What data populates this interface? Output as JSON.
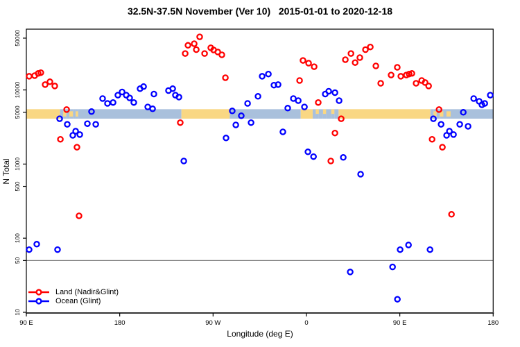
{
  "chart_data": {
    "type": "scatter",
    "title": "32.5N-37.5N November (Ver 10)   2015-01-01 to 2020-12-18",
    "xlabel": "Longitude (deg E)",
    "ylabel": "N Total",
    "x_axis": {
      "range_deg": [
        90,
        540
      ],
      "ticks": [
        {
          "lon": 90,
          "label": "90 E"
        },
        {
          "lon": 180,
          "label": "180"
        },
        {
          "lon": 270,
          "label": "90 W"
        },
        {
          "lon": 360,
          "label": "0"
        },
        {
          "lon": 450,
          "label": "90 E"
        },
        {
          "lon": 540,
          "label": "180"
        }
      ]
    },
    "y_axis": {
      "scale": "log",
      "range": [
        10,
        55000
      ],
      "ticks": [
        10,
        50,
        100,
        500,
        1000,
        5000,
        10000,
        50000
      ]
    },
    "ref_line": {
      "value": 50,
      "color": "#808080"
    },
    "map_band": {
      "value_top": 5500,
      "value_bottom": 4100,
      "land_color": "#F9D783",
      "ocean_color": "#A9C0DC",
      "segments": [
        {
          "from": 90,
          "to": 122.5,
          "type": "land",
          "h": "full"
        },
        {
          "from": 122.5,
          "to": 125.5,
          "type": "ocean",
          "h": "full"
        },
        {
          "from": 125.5,
          "to": 128.5,
          "type": "land",
          "h": "mid"
        },
        {
          "from": 128.5,
          "to": 131.5,
          "type": "ocean",
          "h": "full"
        },
        {
          "from": 131.5,
          "to": 135,
          "type": "land",
          "h": "mid"
        },
        {
          "from": 135,
          "to": 137.5,
          "type": "ocean",
          "h": "full"
        },
        {
          "from": 137.5,
          "to": 140,
          "type": "land",
          "h": "mid"
        },
        {
          "from": 140,
          "to": 239.5,
          "type": "ocean",
          "h": "full"
        },
        {
          "from": 239.5,
          "to": 286,
          "type": "land",
          "h": "full"
        },
        {
          "from": 286,
          "to": 354.5,
          "type": "ocean",
          "h": "full"
        },
        {
          "from": 354.5,
          "to": 366,
          "type": "land",
          "h": "full"
        },
        {
          "from": 366,
          "to": 369,
          "type": "ocean",
          "h": "full"
        },
        {
          "from": 369,
          "to": 372,
          "type": "land",
          "h": "top"
        },
        {
          "from": 372,
          "to": 376,
          "type": "ocean",
          "h": "full"
        },
        {
          "from": 376,
          "to": 379,
          "type": "land",
          "h": "top"
        },
        {
          "from": 379,
          "to": 384,
          "type": "ocean",
          "h": "full"
        },
        {
          "from": 384,
          "to": 387,
          "type": "land",
          "h": "top"
        },
        {
          "from": 387,
          "to": 391,
          "type": "ocean",
          "h": "full"
        },
        {
          "from": 391,
          "to": 479.5,
          "type": "land",
          "h": "full"
        },
        {
          "from": 479.5,
          "to": 482.5,
          "type": "ocean",
          "h": "full"
        },
        {
          "from": 482.5,
          "to": 485.5,
          "type": "land",
          "h": "mid"
        },
        {
          "from": 485.5,
          "to": 488.5,
          "type": "ocean",
          "h": "full"
        },
        {
          "from": 488.5,
          "to": 492,
          "type": "land",
          "h": "mid"
        },
        {
          "from": 492,
          "to": 495,
          "type": "ocean",
          "h": "full"
        },
        {
          "from": 495,
          "to": 499,
          "type": "land",
          "h": "mid"
        },
        {
          "from": 499,
          "to": 540,
          "type": "ocean",
          "h": "full"
        }
      ]
    },
    "series": [
      {
        "name": "Land (Nadir&Glint)",
        "color": "#FF0000",
        "points": [
          [
            92.7,
            15300
          ],
          [
            98,
            15600
          ],
          [
            101.4,
            16700
          ],
          [
            104,
            17100
          ],
          [
            108.1,
            11800
          ],
          [
            112.7,
            12900
          ],
          [
            117.4,
            11300
          ],
          [
            128.8,
            5430
          ],
          [
            122.8,
            2160
          ],
          [
            138.8,
            1690
          ],
          [
            140.8,
            200
          ],
          [
            238.4,
            3620
          ],
          [
            243.1,
            31000
          ],
          [
            245.8,
            40000
          ],
          [
            251.8,
            42000
          ],
          [
            253.8,
            35000
          ],
          [
            257.1,
            52000
          ],
          [
            261.8,
            31000
          ],
          [
            267.8,
            37000
          ],
          [
            270.5,
            34600
          ],
          [
            274.5,
            32500
          ],
          [
            278.5,
            29800
          ],
          [
            281.9,
            14600
          ],
          [
            353.4,
            13400
          ],
          [
            356.7,
            25000
          ],
          [
            362.1,
            23000
          ],
          [
            367.4,
            20600
          ],
          [
            371.4,
            6770
          ],
          [
            383.5,
            1100
          ],
          [
            387.5,
            2620
          ],
          [
            393.5,
            4090
          ],
          [
            397.5,
            25600
          ],
          [
            402.9,
            31000
          ],
          [
            406.9,
            23400
          ],
          [
            411.5,
            27300
          ],
          [
            416.9,
            35000
          ],
          [
            421.6,
            38000
          ],
          [
            426.9,
            21100
          ],
          [
            431.6,
            12300
          ],
          [
            441.6,
            15900
          ],
          [
            447.6,
            20200
          ],
          [
            451,
            15300
          ],
          [
            456.3,
            15900
          ],
          [
            459,
            16400
          ],
          [
            461.7,
            16700
          ],
          [
            465.7,
            12300
          ],
          [
            471.1,
            13400
          ],
          [
            474.4,
            12600
          ],
          [
            477.8,
            11300
          ],
          [
            487.8,
            5430
          ],
          [
            481.1,
            2160
          ],
          [
            491.1,
            1690
          ],
          [
            499.8,
            210
          ]
        ]
      },
      {
        "name": "Ocean (Glint)",
        "color": "#0000FF",
        "points": [
          [
            122.1,
            4090
          ],
          [
            129.4,
            3440
          ],
          [
            134.8,
            2440
          ],
          [
            137.5,
            2780
          ],
          [
            141.5,
            2500
          ],
          [
            148.8,
            3510
          ],
          [
            152.8,
            5100
          ],
          [
            156.9,
            3440
          ],
          [
            163.5,
            7650
          ],
          [
            168.2,
            6580
          ],
          [
            173.6,
            6770
          ],
          [
            178.2,
            8500
          ],
          [
            182.3,
            9400
          ],
          [
            186.3,
            8500
          ],
          [
            189.6,
            7800
          ],
          [
            193.6,
            6770
          ],
          [
            199.6,
            10400
          ],
          [
            203,
            11100
          ],
          [
            207,
            5900
          ],
          [
            211.7,
            5560
          ],
          [
            213,
            8800
          ],
          [
            227,
            9800
          ],
          [
            231.1,
            10400
          ],
          [
            233.7,
            8500
          ],
          [
            237.1,
            8000
          ],
          [
            241.8,
            1100
          ],
          [
            282.5,
            2250
          ],
          [
            288.5,
            5220
          ],
          [
            291.9,
            3370
          ],
          [
            297.2,
            4480
          ],
          [
            303.3,
            6580
          ],
          [
            306.6,
            3620
          ],
          [
            313.3,
            8200
          ],
          [
            317.3,
            15300
          ],
          [
            323.3,
            16400
          ],
          [
            328.7,
            11600
          ],
          [
            332.7,
            11800
          ],
          [
            337.3,
            2720
          ],
          [
            342,
            5680
          ],
          [
            347.4,
            7650
          ],
          [
            352.1,
            7170
          ],
          [
            358.1,
            5900
          ],
          [
            361.4,
            1460
          ],
          [
            366.8,
            1260
          ],
          [
            378.1,
            8800
          ],
          [
            381.5,
            9600
          ],
          [
            387.5,
            9200
          ],
          [
            391.5,
            7170
          ],
          [
            395.5,
            1230
          ],
          [
            402.2,
            35
          ],
          [
            412.2,
            730
          ],
          [
            443,
            41
          ],
          [
            447.7,
            15
          ],
          [
            450.3,
            70
          ],
          [
            458.4,
            81
          ],
          [
            479.1,
            70
          ],
          [
            482.4,
            4090
          ],
          [
            489.8,
            3440
          ],
          [
            495.1,
            2440
          ],
          [
            497.8,
            2780
          ],
          [
            501.8,
            2500
          ],
          [
            507.8,
            3440
          ],
          [
            511.2,
            5000
          ],
          [
            515.8,
            3230
          ],
          [
            521.2,
            7650
          ],
          [
            526.5,
            7020
          ],
          [
            529.2,
            6300
          ],
          [
            531.9,
            6580
          ],
          [
            537.2,
            8500
          ],
          [
            92.7,
            70
          ],
          [
            100,
            83
          ],
          [
            120.1,
            70
          ]
        ]
      }
    ],
    "legend": {
      "position": "bottom-left",
      "entries": [
        "Land (Nadir&Glint)",
        "Ocean (Glint)"
      ]
    }
  }
}
